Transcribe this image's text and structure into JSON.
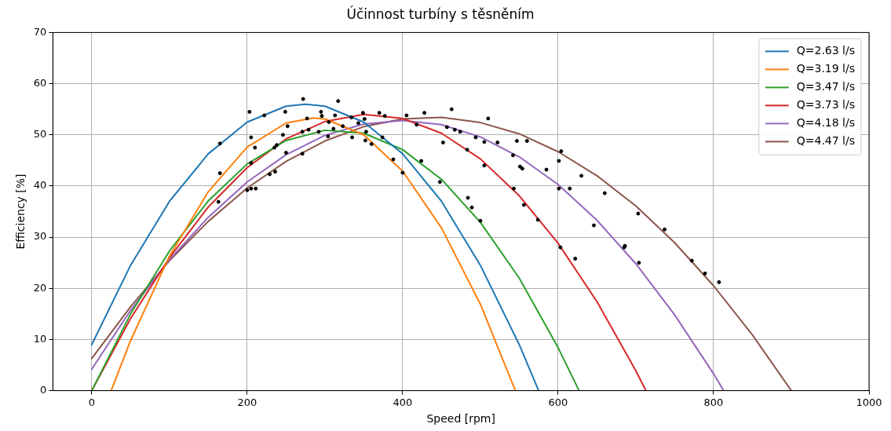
{
  "chart_data": {
    "type": "line",
    "title": "Účinnost turbíny s těsněním",
    "xlabel": "Speed [rpm]",
    "ylabel": "Efficiency [%]",
    "xlim": [
      -50,
      1000
    ],
    "xticks": [
      0,
      200,
      400,
      600,
      800,
      1000
    ],
    "ylim": [
      0,
      70
    ],
    "yticks": [
      0,
      10,
      20,
      30,
      40,
      50,
      60,
      70
    ],
    "grid": true,
    "legend": "top right",
    "line_style": "solid",
    "series": [
      {
        "name": "Q=2.63 l/s",
        "color": "#1f77b4",
        "marker": "none",
        "x": [
          0,
          50,
          100,
          150,
          200,
          250,
          275,
          300,
          350,
          400,
          450,
          500,
          550,
          575
        ],
        "values": [
          9.0,
          24.5,
          37.0,
          46.3,
          52.5,
          55.6,
          56.0,
          55.6,
          52.5,
          46.3,
          37.0,
          24.5,
          9.0,
          0
        ]
      },
      {
        "name": "Q=3.19 l/s",
        "color": "#ff7f0e",
        "marker": "none",
        "x": [
          25,
          50,
          100,
          150,
          200,
          250,
          285,
          300,
          350,
          400,
          450,
          500,
          545
        ],
        "values": [
          0,
          9.8,
          26.3,
          38.9,
          47.6,
          52.3,
          53.3,
          53.1,
          50.0,
          42.9,
          31.8,
          16.9,
          0
        ]
      },
      {
        "name": "Q=3.47 l/s",
        "color": "#2ca02c",
        "marker": "none",
        "x": [
          0,
          50,
          100,
          150,
          200,
          250,
          300,
          350,
          400,
          450,
          500,
          550,
          600,
          627
        ],
        "values": [
          0,
          15.0,
          27.3,
          37.1,
          44.3,
          48.9,
          50.9,
          50.3,
          47.1,
          41.3,
          32.9,
          22.0,
          8.4,
          0
        ]
      },
      {
        "name": "Q=3.73 l/s",
        "color": "#d62728",
        "marker": "none",
        "x": [
          0,
          50,
          100,
          150,
          200,
          250,
          300,
          350,
          400,
          450,
          500,
          550,
          600,
          650,
          700,
          713
        ],
        "values": [
          0,
          14.1,
          26.0,
          35.9,
          43.6,
          49.2,
          52.6,
          54.0,
          53.2,
          50.3,
          45.3,
          38.1,
          28.8,
          17.4,
          3.9,
          0
        ]
      },
      {
        "name": "Q=4.18 l/s",
        "color": "#9467bd",
        "marker": "none",
        "x": [
          0,
          50,
          100,
          150,
          200,
          250,
          300,
          350,
          400,
          450,
          500,
          550,
          600,
          650,
          700,
          750,
          800,
          813
        ],
        "values": [
          4.2,
          15.7,
          25.6,
          33.9,
          40.8,
          46.1,
          49.9,
          52.1,
          52.8,
          52.0,
          49.6,
          45.7,
          40.3,
          33.3,
          24.8,
          14.8,
          3.3,
          0
        ]
      },
      {
        "name": "Q=4.47 l/s",
        "color": "#8c564b",
        "marker": "none",
        "x": [
          0,
          50,
          100,
          150,
          200,
          250,
          300,
          350,
          400,
          450,
          500,
          550,
          600,
          650,
          700,
          750,
          800,
          850,
          900
        ],
        "values": [
          6.3,
          16.4,
          25.4,
          33.1,
          39.6,
          44.8,
          48.8,
          51.6,
          53.1,
          53.4,
          52.4,
          50.2,
          46.7,
          42.0,
          36.1,
          28.9,
          20.5,
          10.9,
          0
        ]
      },
      {
        "type": "scatter",
        "color": "#000000",
        "marker": "circle",
        "x": [
          165,
          165,
          163,
          203,
          205,
          205,
          200,
          205,
          211,
          210,
          222,
          229,
          236,
          235,
          238,
          249,
          246,
          252,
          250,
          272,
          271,
          271,
          277,
          279,
          292,
          296,
          295,
          304,
          305,
          311,
          313,
          317,
          323,
          335,
          334,
          343,
          349,
          351,
          352,
          353,
          360,
          370,
          374,
          377,
          388,
          400,
          405,
          418,
          424,
          428,
          448,
          452,
          457,
          463,
          467,
          474,
          483,
          484,
          489,
          494,
          500,
          505,
          510,
          522,
          505,
          542,
          543,
          547,
          551,
          554,
          556,
          560,
          574,
          585,
          601,
          604,
          601,
          603,
          615,
          622,
          630,
          646,
          660,
          685,
          686,
          703,
          704,
          737,
          772,
          789,
          807
        ],
        "values": [
          48.3,
          42.5,
          36.9,
          54.5,
          49.5,
          44.5,
          39.2,
          39.5,
          39.5,
          47.5,
          53.8,
          42.3,
          42.8,
          47.5,
          48,
          54.5,
          50,
          51.7,
          46.5,
          57,
          50.6,
          46.3,
          53.2,
          51,
          50.6,
          53.7,
          54.5,
          49.7,
          52.5,
          51.2,
          53.8,
          56.6,
          51.7,
          49.5,
          53.4,
          52.3,
          54.3,
          53.1,
          48.9,
          50.6,
          48.2,
          54.3,
          49.5,
          53.7,
          45.2,
          42.6,
          53.8,
          52,
          44.9,
          54.3,
          40.8,
          48.5,
          51.5,
          55,
          51,
          50.6,
          47.1,
          37.7,
          35.8,
          49.5,
          33.2,
          48.6,
          53.2,
          48.5,
          44,
          46,
          39.5,
          48.8,
          43.8,
          43.4,
          36.3,
          48.8,
          33.4,
          43.2,
          44.9,
          46.8,
          39.5,
          28,
          39.5,
          25.8,
          42,
          32.3,
          38.6,
          28,
          28.3,
          34.6,
          25,
          31.5,
          25.4,
          22.9,
          21.2
        ]
      }
    ]
  }
}
